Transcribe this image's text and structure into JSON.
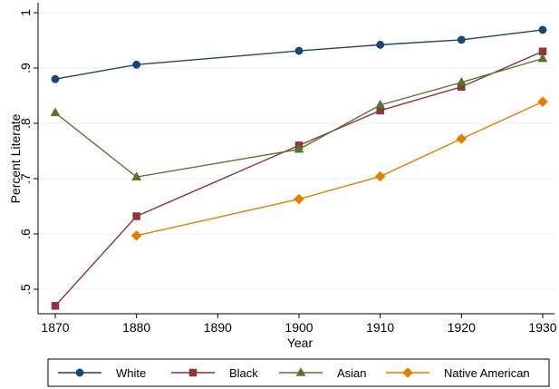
{
  "chart_data": {
    "type": "line",
    "xlabel": "Year",
    "ylabel": "Percent Literate",
    "xlim": [
      1870,
      1930
    ],
    "ylim": [
      0.47,
      1.0
    ],
    "xticks": [
      1870,
      1880,
      1890,
      1900,
      1910,
      1920,
      1930
    ],
    "yticks": [
      0.5,
      0.6,
      0.7,
      0.8,
      0.9,
      1.0
    ],
    "ytick_labels": [
      ".5",
      ".6",
      ".7",
      ".8",
      ".9",
      "1"
    ],
    "grid": "horizontal",
    "legend_position": "bottom",
    "series": [
      {
        "name": "White",
        "color": "#1a476f",
        "marker": "circle",
        "x": [
          1870,
          1880,
          1900,
          1910,
          1920,
          1930
        ],
        "y": [
          0.88,
          0.906,
          0.931,
          0.942,
          0.951,
          0.969
        ]
      },
      {
        "name": "Black",
        "color": "#90353b",
        "marker": "square",
        "x": [
          1870,
          1880,
          1900,
          1910,
          1920,
          1930
        ],
        "y": [
          0.47,
          0.632,
          0.76,
          0.823,
          0.866,
          0.93
        ]
      },
      {
        "name": "Asian",
        "color": "#55752f",
        "marker": "triangle",
        "x": [
          1870,
          1880,
          1900,
          1910,
          1920,
          1930
        ],
        "y": [
          0.819,
          0.703,
          0.753,
          0.833,
          0.874,
          0.917
        ]
      },
      {
        "name": "Native American",
        "color": "#e37e00",
        "marker": "diamond",
        "x": [
          1880,
          1900,
          1910,
          1920,
          1930
        ],
        "y": [
          0.597,
          0.663,
          0.704,
          0.772,
          0.839
        ]
      }
    ]
  }
}
